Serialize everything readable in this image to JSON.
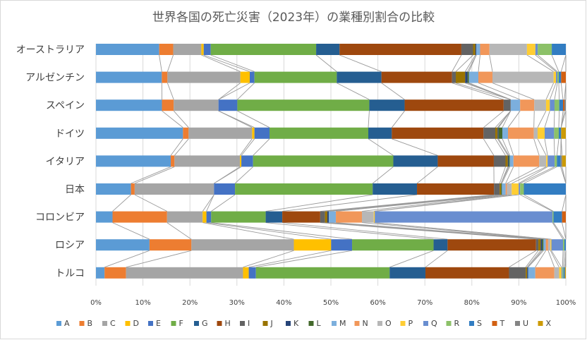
{
  "chart_data": {
    "type": "bar",
    "orientation": "horizontal",
    "stacked": "100%",
    "title": "世界各国の死亡災害（2023年）の業種別割合の比較",
    "categories": [
      "オーストラリア",
      "アルゼンチン",
      "スペイン",
      "ドイツ",
      "イタリア",
      "日本",
      "コロンビア",
      "ロシア",
      "トルコ"
    ],
    "x_ticks": [
      "0%",
      "10%",
      "20%",
      "30%",
      "40%",
      "50%",
      "60%",
      "70%",
      "80%",
      "90%",
      "100%"
    ],
    "xlim": [
      0,
      100
    ],
    "grid": true,
    "series_lines": true,
    "legend_position": "bottom",
    "series": [
      {
        "name": "A",
        "color": "#5b9bd5",
        "values": [
          13.5,
          14.0,
          14.0,
          18.5,
          16.0,
          7.5,
          3.5,
          11.5,
          1.8
        ]
      },
      {
        "name": "B",
        "color": "#ed7d31",
        "values": [
          3.0,
          1.2,
          2.5,
          1.2,
          0.8,
          0.8,
          11.5,
          9.0,
          4.5
        ]
      },
      {
        "name": "C",
        "color": "#a5a5a5",
        "values": [
          6.0,
          15.5,
          9.5,
          13.5,
          14.0,
          17.0,
          7.5,
          22.0,
          24.5
        ]
      },
      {
        "name": "D",
        "color": "#ffc000",
        "values": [
          0.5,
          2.0,
          0.0,
          0.5,
          0.3,
          0.0,
          0.8,
          8.0,
          1.2
        ]
      },
      {
        "name": "E",
        "color": "#4472c4",
        "values": [
          1.5,
          1.0,
          4.0,
          3.2,
          2.5,
          4.5,
          1.0,
          4.5,
          1.5
        ]
      },
      {
        "name": "F",
        "color": "#70ad47",
        "values": [
          22.5,
          17.5,
          28.0,
          21.0,
          30.0,
          29.5,
          11.5,
          17.5,
          28.0
        ]
      },
      {
        "name": "G",
        "color": "#255e91",
        "values": [
          5.0,
          9.5,
          7.5,
          5.0,
          9.5,
          9.5,
          3.5,
          3.0,
          7.5
        ]
      },
      {
        "name": "H",
        "color": "#9e480e",
        "values": [
          26.0,
          15.0,
          21.0,
          19.5,
          12.0,
          16.5,
          8.0,
          19.0,
          17.5
        ]
      },
      {
        "name": "I",
        "color": "#636363",
        "values": [
          2.5,
          0.8,
          1.5,
          2.5,
          2.5,
          1.2,
          1.0,
          0.5,
          3.5
        ]
      },
      {
        "name": "J",
        "color": "#997300",
        "values": [
          0.5,
          2.0,
          0.0,
          0.5,
          0.5,
          0.3,
          0.5,
          0.5,
          0.3
        ]
      },
      {
        "name": "K",
        "color": "#264478",
        "values": [
          0.2,
          0.5,
          0.0,
          0.2,
          0.2,
          0.0,
          0.3,
          0.3,
          0.2
        ]
      },
      {
        "name": "L",
        "color": "#43682b",
        "values": [
          0.0,
          0.3,
          0.0,
          0.8,
          0.2,
          0.2,
          0.0,
          0.3,
          0.0
        ]
      },
      {
        "name": "M",
        "color": "#7cafdd",
        "values": [
          0.8,
          2.0,
          2.0,
          1.2,
          0.8,
          0.8,
          1.5,
          0.5,
          1.5
        ]
      },
      {
        "name": "N",
        "color": "#f1975a",
        "values": [
          2.0,
          3.0,
          3.0,
          5.5,
          5.5,
          0.3,
          5.5,
          0.5,
          4.0
        ]
      },
      {
        "name": "O",
        "color": "#b7b7b7",
        "values": [
          8.0,
          13.0,
          2.5,
          0.8,
          1.5,
          1.0,
          2.5,
          0.5,
          1.0
        ]
      },
      {
        "name": "P",
        "color": "#ffcd33",
        "values": [
          1.8,
          0.5,
          0.8,
          1.5,
          0.3,
          1.5,
          0.2,
          0.2,
          0.5
        ]
      },
      {
        "name": "Q",
        "color": "#698ed0",
        "values": [
          0.5,
          0.3,
          1.0,
          2.0,
          1.5,
          0.3,
          37.5,
          2.5,
          0.2
        ]
      },
      {
        "name": "R",
        "color": "#8cc168",
        "values": [
          3.0,
          0.3,
          1.0,
          1.0,
          0.5,
          0.8,
          0.2,
          0.3,
          0.2
        ]
      },
      {
        "name": "S",
        "color": "#327dc2",
        "values": [
          3.0,
          0.5,
          0.8,
          0.5,
          0.8,
          9.0,
          1.8,
          0.3,
          0.3
        ]
      },
      {
        "name": "T",
        "color": "#d26012",
        "values": [
          0.0,
          1.0,
          0.3,
          0.0,
          0.0,
          0.0,
          0.8,
          0.0,
          0.0
        ]
      },
      {
        "name": "U",
        "color": "#848484",
        "values": [
          0.0,
          0.0,
          0.3,
          0.0,
          0.3,
          0.0,
          0.0,
          0.0,
          0.0
        ]
      },
      {
        "name": "X",
        "color": "#cc9a06",
        "values": [
          0.0,
          0.0,
          0.0,
          1.0,
          0.8,
          0.0,
          0.0,
          0.0,
          0.2
        ]
      }
    ]
  }
}
